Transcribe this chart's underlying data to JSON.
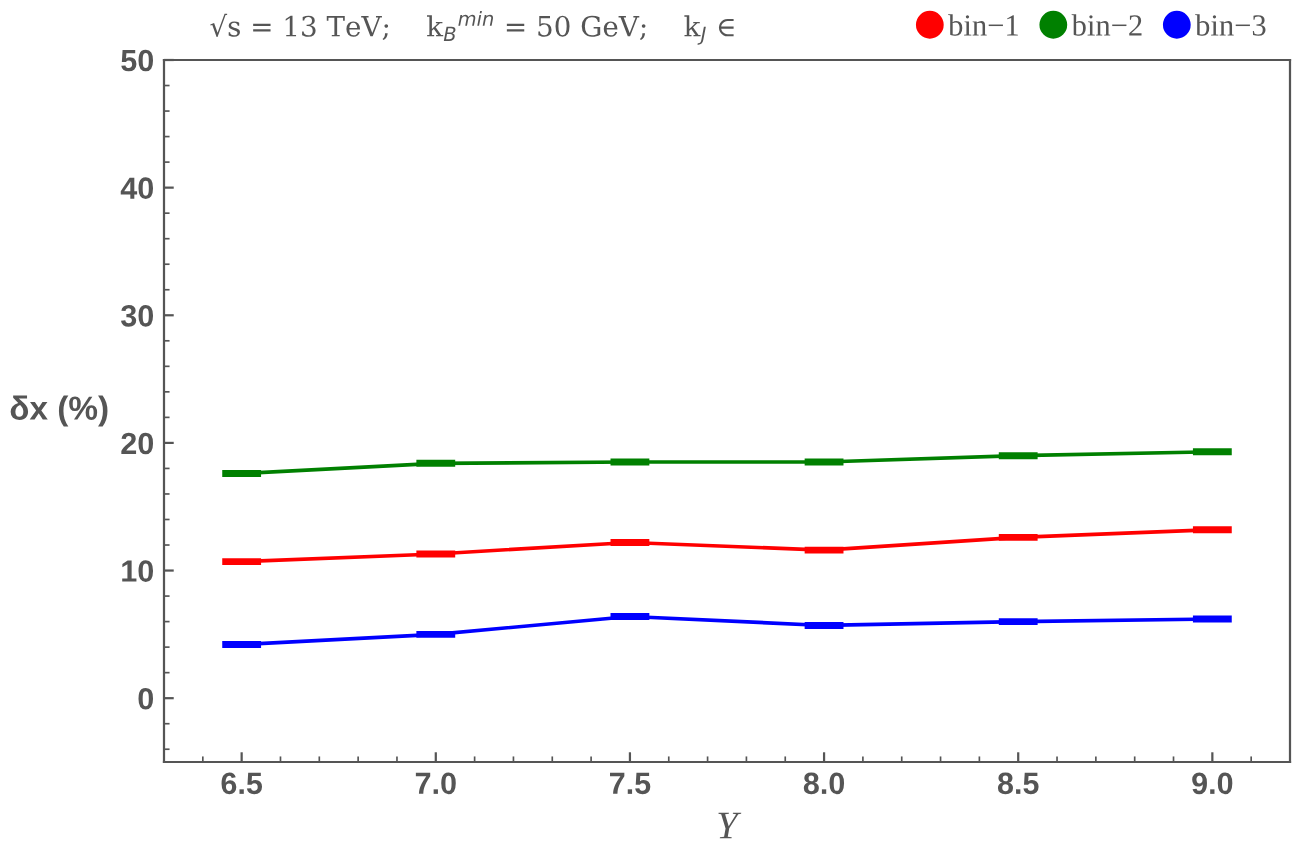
{
  "chart_data": {
    "type": "line",
    "title": "√s = 13 TeV;    k$_{B}$$^{min}$ = 50 GeV;    k$_{J}$ ∈",
    "xlabel": "Y",
    "ylabel": "δx (%)",
    "x": [
      6.5,
      7.0,
      7.5,
      8.0,
      8.5,
      9.0
    ],
    "series": [
      {
        "name": "bin−1",
        "color": "#ff0000",
        "values": [
          10.7,
          11.3,
          12.2,
          11.6,
          12.6,
          13.2
        ],
        "xerrors": [
          0.05,
          0.05,
          0.05,
          0.05,
          0.05,
          0.05
        ]
      },
      {
        "name": "bin−2",
        "color": "#008000",
        "values": [
          17.6,
          18.4,
          18.5,
          18.5,
          19.0,
          19.3
        ],
        "xerrors": [
          0.05,
          0.05,
          0.05,
          0.05,
          0.05,
          0.05
        ]
      },
      {
        "name": "bin−3",
        "color": "#0000ff",
        "values": [
          4.2,
          5.0,
          6.4,
          5.7,
          6.0,
          6.2
        ],
        "xerrors": [
          0.05,
          0.05,
          0.05,
          0.05,
          0.05,
          0.05
        ]
      }
    ],
    "xlim": [
      6.3,
      9.2
    ],
    "ylim": [
      -5,
      50
    ],
    "xticks": [
      {
        "value": 6.5,
        "label": "6.5"
      },
      {
        "value": 7.0,
        "label": "7.0"
      },
      {
        "value": 7.5,
        "label": "7.5"
      },
      {
        "value": 8.0,
        "label": "8.0"
      },
      {
        "value": 8.5,
        "label": "8.5"
      },
      {
        "value": 9.0,
        "label": "9.0"
      }
    ],
    "yticks": [
      0,
      10,
      20,
      30,
      40,
      50
    ],
    "grid": false,
    "legend": "top",
    "marker": "none",
    "line_style": "solid"
  }
}
